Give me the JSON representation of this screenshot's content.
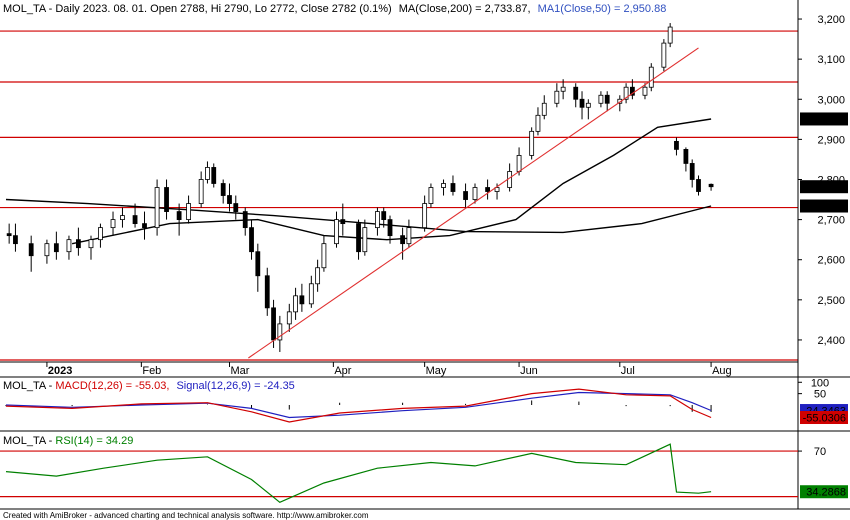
{
  "title_line": {
    "symbol": "MOL_TA",
    "prefix": "MOL_TA - Daily 2023. 08. 01. Open 2788, Hi 2790, Lo 2772, Close 2782 (0.1%)",
    "ma200_text": "MA(Close,200) = 2,733.87,",
    "ma50_text": "MA1(Close,50) = 2,950.88",
    "ma50_color": "#3050c0"
  },
  "macd_title": {
    "prefix": "MOL_TA - ",
    "macd_text": "MACD(12,26) = -55.03,",
    "signal_text": "Signal(12,26,9) = -24.35",
    "macd_color": "#d00000",
    "signal_color": "#2020c0"
  },
  "rsi_title": {
    "prefix": "MOL_TA - ",
    "rsi_text": "RSI(14) = 34.29",
    "rsi_color": "#008000"
  },
  "footer": "Created with AmiBroker - advanced charting and technical analysis software. http://www.amibroker.com",
  "badges": {
    "ma50": "2,950.88",
    "close": "2,782",
    "ma200": "2,733.87",
    "signal": "-24.3463",
    "macd": "-55.0306",
    "rsi": "34.2868"
  },
  "colors": {
    "up_candle": "#ffffff",
    "down_candle": "#000000",
    "horizontal_level": "#d00000",
    "trendline": "#e03030",
    "ma200": "#000000",
    "ma50": "#000000",
    "macd": "#d00000",
    "signal": "#2020c0",
    "rsi": "#008000",
    "rsi_levels": "#d00000"
  },
  "chart_data": [
    {
      "type": "candlestick",
      "title": "MOL_TA - Daily 2023. 08. 01. Open 2788, Hi 2790, Lo 2772, Close 2782 (0.1%)",
      "x_labels": [
        "2023",
        "Feb",
        "Mar",
        "Apr",
        "May",
        "Jun",
        "Jul",
        "Aug"
      ],
      "x_label_dates": [
        "2023-01-02",
        "2023-02-01",
        "2023-03-01",
        "2023-04-03",
        "2023-05-02",
        "2023-06-01",
        "2023-07-03",
        "2023-08-01"
      ],
      "x_range": [
        "2022-12-20",
        "2023-08-14"
      ],
      "ylim": [
        2345,
        3235
      ],
      "y_ticks": [
        2400,
        2500,
        2600,
        2700,
        2800,
        2900,
        3000,
        3100,
        3200
      ],
      "grid": false,
      "horizontal_levels": [
        3170,
        3043,
        2905,
        2730,
        2350
      ],
      "trendline": {
        "from": [
          "2023-03-07",
          2355
        ],
        "to": [
          "2023-07-28",
          3128
        ]
      },
      "candles": [
        [
          "2022-12-21",
          2665,
          2690,
          2640,
          2660
        ],
        [
          "2022-12-23",
          2660,
          2690,
          2620,
          2640
        ],
        [
          "2022-12-28",
          2640,
          2660,
          2570,
          2610
        ],
        [
          "2023-01-02",
          2610,
          2650,
          2590,
          2640
        ],
        [
          "2023-01-05",
          2640,
          2670,
          2600,
          2620
        ],
        [
          "2023-01-09",
          2620,
          2660,
          2600,
          2650
        ],
        [
          "2023-01-12",
          2650,
          2680,
          2610,
          2630
        ],
        [
          "2023-01-16",
          2630,
          2660,
          2600,
          2650
        ],
        [
          "2023-01-19",
          2650,
          2690,
          2630,
          2680
        ],
        [
          "2023-01-23",
          2680,
          2720,
          2660,
          2700
        ],
        [
          "2023-01-26",
          2700,
          2730,
          2680,
          2710
        ],
        [
          "2023-01-30",
          2710,
          2740,
          2680,
          2690
        ],
        [
          "2023-02-02",
          2690,
          2720,
          2650,
          2680
        ],
        [
          "2023-02-06",
          2680,
          2800,
          2660,
          2780
        ],
        [
          "2023-02-09",
          2780,
          2800,
          2700,
          2720
        ],
        [
          "2023-02-13",
          2720,
          2740,
          2660,
          2700
        ],
        [
          "2023-02-16",
          2700,
          2760,
          2690,
          2740
        ],
        [
          "2023-02-20",
          2740,
          2820,
          2730,
          2800
        ],
        [
          "2023-02-22",
          2800,
          2845,
          2790,
          2830
        ],
        [
          "2023-02-24",
          2830,
          2840,
          2780,
          2790
        ],
        [
          "2023-02-27",
          2790,
          2800,
          2740,
          2760
        ],
        [
          "2023-03-01",
          2760,
          2790,
          2720,
          2740
        ],
        [
          "2023-03-03",
          2740,
          2760,
          2700,
          2720
        ],
        [
          "2023-03-06",
          2720,
          2730,
          2660,
          2680
        ],
        [
          "2023-03-08",
          2680,
          2700,
          2600,
          2620
        ],
        [
          "2023-03-10",
          2620,
          2640,
          2520,
          2560
        ],
        [
          "2023-03-13",
          2560,
          2580,
          2460,
          2480
        ],
        [
          "2023-03-15",
          2480,
          2500,
          2380,
          2400
        ],
        [
          "2023-03-17",
          2400,
          2460,
          2370,
          2440
        ],
        [
          "2023-03-20",
          2440,
          2490,
          2420,
          2470
        ],
        [
          "2023-03-22",
          2470,
          2530,
          2450,
          2510
        ],
        [
          "2023-03-24",
          2510,
          2540,
          2470,
          2490
        ],
        [
          "2023-03-27",
          2490,
          2560,
          2480,
          2540
        ],
        [
          "2023-03-29",
          2540,
          2600,
          2520,
          2580
        ],
        [
          "2023-03-31",
          2580,
          2660,
          2570,
          2640
        ],
        [
          "2023-04-04",
          2640,
          2720,
          2630,
          2700
        ],
        [
          "2023-04-06",
          2700,
          2740,
          2660,
          2690
        ],
        [
          "2023-04-11",
          2690,
          2700,
          2600,
          2620
        ],
        [
          "2023-04-13",
          2620,
          2700,
          2610,
          2680
        ],
        [
          "2023-04-17",
          2680,
          2730,
          2660,
          2720
        ],
        [
          "2023-04-19",
          2720,
          2730,
          2680,
          2700
        ],
        [
          "2023-04-21",
          2700,
          2710,
          2640,
          2660
        ],
        [
          "2023-04-25",
          2660,
          2680,
          2600,
          2640
        ],
        [
          "2023-04-27",
          2640,
          2700,
          2630,
          2680
        ],
        [
          "2023-05-02",
          2680,
          2760,
          2670,
          2740
        ],
        [
          "2023-05-04",
          2740,
          2790,
          2730,
          2780
        ],
        [
          "2023-05-08",
          2780,
          2800,
          2760,
          2790
        ],
        [
          "2023-05-11",
          2790,
          2810,
          2760,
          2770
        ],
        [
          "2023-05-15",
          2770,
          2790,
          2730,
          2750
        ],
        [
          "2023-05-18",
          2750,
          2790,
          2740,
          2780
        ],
        [
          "2023-05-22",
          2780,
          2800,
          2750,
          2770
        ],
        [
          "2023-05-25",
          2770,
          2790,
          2750,
          2780
        ],
        [
          "2023-05-29",
          2780,
          2840,
          2770,
          2820
        ],
        [
          "2023-06-01",
          2820,
          2880,
          2810,
          2860
        ],
        [
          "2023-06-05",
          2860,
          2930,
          2850,
          2920
        ],
        [
          "2023-06-07",
          2920,
          2980,
          2910,
          2960
        ],
        [
          "2023-06-09",
          2960,
          3010,
          2950,
          2990
        ],
        [
          "2023-06-13",
          2990,
          3040,
          2980,
          3020
        ],
        [
          "2023-06-15",
          3020,
          3050,
          3000,
          3030
        ],
        [
          "2023-06-19",
          3030,
          3040,
          2980,
          3000
        ],
        [
          "2023-06-21",
          3000,
          3020,
          2950,
          2980
        ],
        [
          "2023-06-23",
          2980,
          3000,
          2950,
          2990
        ],
        [
          "2023-06-27",
          2990,
          3020,
          2980,
          3010
        ],
        [
          "2023-06-29",
          3010,
          3020,
          2970,
          2990
        ],
        [
          "2023-07-03",
          2990,
          3010,
          2970,
          3000
        ],
        [
          "2023-07-05",
          3000,
          3040,
          2990,
          3030
        ],
        [
          "2023-07-07",
          3030,
          3050,
          3000,
          3010
        ],
        [
          "2023-07-11",
          3010,
          3040,
          3000,
          3030
        ],
        [
          "2023-07-13",
          3030,
          3090,
          3020,
          3080
        ],
        [
          "2023-07-17",
          3080,
          3150,
          3070,
          3140
        ],
        [
          "2023-07-19",
          3140,
          3190,
          3130,
          3180
        ],
        [
          "2023-07-21",
          2895,
          2905,
          2860,
          2875
        ],
        [
          "2023-07-24",
          2875,
          2880,
          2820,
          2840
        ],
        [
          "2023-07-26",
          2840,
          2850,
          2780,
          2800
        ],
        [
          "2023-07-28",
          2800,
          2810,
          2760,
          2770
        ],
        [
          "2023-08-01",
          2788,
          2790,
          2772,
          2782
        ]
      ],
      "series": [
        {
          "name": "MA(Close,200)",
          "x": [
            "2022-12-20",
            "2023-01-15",
            "2023-02-15",
            "2023-03-15",
            "2023-04-15",
            "2023-05-15",
            "2023-06-15",
            "2023-07-10",
            "2023-08-01"
          ],
          "values": [
            2750,
            2740,
            2725,
            2710,
            2690,
            2670,
            2668,
            2690,
            2733.87
          ]
        },
        {
          "name": "MA1(Close,50)",
          "x": [
            "2023-01-10",
            "2023-02-10",
            "2023-03-10",
            "2023-03-31",
            "2023-04-20",
            "2023-05-10",
            "2023-05-31",
            "2023-06-15",
            "2023-07-01",
            "2023-07-15",
            "2023-08-01"
          ],
          "values": [
            2640,
            2690,
            2700,
            2660,
            2650,
            2660,
            2700,
            2790,
            2860,
            2930,
            2950.88
          ]
        }
      ]
    },
    {
      "type": "line",
      "title": "MOL_TA - MACD(12,26) = -55.03, Signal(12,26,9) = -24.35",
      "ylim": [
        -110,
        110
      ],
      "y_ticks": [
        100,
        50
      ],
      "series": [
        {
          "name": "MACD(12,26)",
          "x": [
            "2022-12-20",
            "2023-01-10",
            "2023-02-01",
            "2023-02-22",
            "2023-03-08",
            "2023-03-20",
            "2023-04-05",
            "2023-04-25",
            "2023-05-15",
            "2023-06-05",
            "2023-06-20",
            "2023-07-05",
            "2023-07-19",
            "2023-07-26",
            "2023-08-01"
          ],
          "values": [
            -5,
            -15,
            5,
            10,
            -30,
            -75,
            -35,
            -15,
            -5,
            50,
            70,
            45,
            40,
            -20,
            -55.03
          ]
        },
        {
          "name": "Signal(12,26,9)",
          "x": [
            "2022-12-20",
            "2023-01-10",
            "2023-02-01",
            "2023-02-22",
            "2023-03-08",
            "2023-03-20",
            "2023-04-05",
            "2023-04-25",
            "2023-05-15",
            "2023-06-05",
            "2023-06-20",
            "2023-07-05",
            "2023-07-19",
            "2023-07-26",
            "2023-08-01"
          ],
          "values": [
            0,
            -10,
            0,
            8,
            -15,
            -55,
            -45,
            -25,
            -10,
            30,
            55,
            50,
            45,
            10,
            -24.35
          ]
        }
      ]
    },
    {
      "type": "line",
      "title": "MOL_TA - RSI(14) = 34.29",
      "ylim": [
        20,
        85
      ],
      "y_ticks": [
        70
      ],
      "levels": [
        70,
        30
      ],
      "series": [
        {
          "name": "RSI(14)",
          "x": [
            "2022-12-20",
            "2023-01-05",
            "2023-01-20",
            "2023-02-06",
            "2023-02-22",
            "2023-03-08",
            "2023-03-17",
            "2023-03-31",
            "2023-04-17",
            "2023-05-04",
            "2023-05-18",
            "2023-06-05",
            "2023-06-19",
            "2023-07-05",
            "2023-07-19",
            "2023-07-21",
            "2023-07-28",
            "2023-08-01"
          ],
          "values": [
            52,
            48,
            55,
            62,
            65,
            45,
            25,
            42,
            55,
            60,
            57,
            68,
            60,
            58,
            76,
            34,
            33,
            34.29
          ]
        }
      ]
    }
  ]
}
